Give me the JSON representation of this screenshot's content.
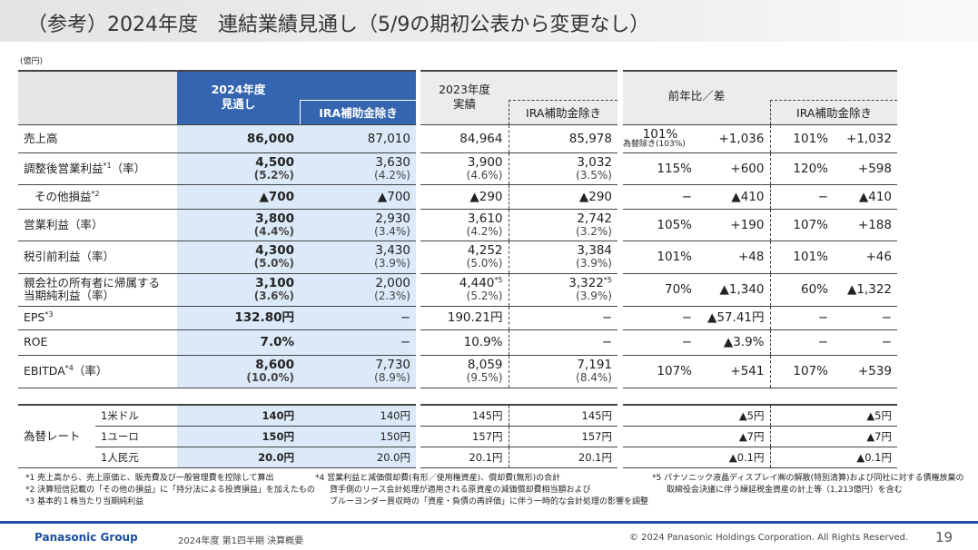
{
  "title": "（参考）2024年度　連結業績見通し（5/9の期初公表から変更なし）",
  "unit": "(億円)",
  "headers": {
    "fy2024": "2024年度\n見通し",
    "fy2023": "2023年度\n実績",
    "compare": "前年比／差",
    "ira": "IRA補助金除き"
  },
  "rows": [
    {
      "label": "売上高",
      "sup": "",
      "v": [
        [
          "86,000",
          ""
        ],
        [
          "87,010",
          ""
        ],
        [
          "84,964",
          "",
          ""
        ],
        [
          "85,978",
          "",
          ""
        ]
      ],
      "cmp": [
        "101%",
        "+1,036",
        "101%",
        "+1,032"
      ],
      "cmp_note": "為替除き(103%)"
    },
    {
      "label": "調整後営業利益",
      "sup": "*1",
      "suffix": "（率）",
      "v": [
        [
          "4,500",
          "(5.2%)"
        ],
        [
          "3,630",
          "(4.2%)"
        ],
        [
          "3,900",
          "(4.6%)",
          ""
        ],
        [
          "3,032",
          "(3.5%)",
          ""
        ]
      ],
      "cmp": [
        "115%",
        "+600",
        "120%",
        "+598"
      ]
    },
    {
      "label": "その他損益",
      "sup": "*2",
      "indent": true,
      "v": [
        [
          "▲700",
          ""
        ],
        [
          "▲700",
          ""
        ],
        [
          "▲290",
          "",
          ""
        ],
        [
          "▲290",
          "",
          ""
        ]
      ],
      "cmp": [
        "−",
        "▲410",
        "−",
        "▲410"
      ]
    },
    {
      "label": "営業利益（率）",
      "sup": "",
      "v": [
        [
          "3,800",
          "(4.4%)"
        ],
        [
          "2,930",
          "(3.4%)"
        ],
        [
          "3,610",
          "(4.2%)",
          ""
        ],
        [
          "2,742",
          "(3.2%)",
          ""
        ]
      ],
      "cmp": [
        "105%",
        "+190",
        "107%",
        "+188"
      ]
    },
    {
      "label": "税引前利益（率）",
      "sup": "",
      "v": [
        [
          "4,300",
          "(5.0%)"
        ],
        [
          "3,430",
          "(3.9%)"
        ],
        [
          "4,252",
          "(5.0%)",
          ""
        ],
        [
          "3,384",
          "(3.9%)",
          ""
        ]
      ],
      "cmp": [
        "101%",
        "+48",
        "101%",
        "+46"
      ]
    },
    {
      "label": "親会社の所有者に帰属する\n当期純利益（率）",
      "sup": "",
      "v": [
        [
          "3,100",
          "(3.6%)"
        ],
        [
          "2,000",
          "(2.3%)"
        ],
        [
          "4,440",
          "(5.2%)",
          "*5"
        ],
        [
          "3,322",
          "(3.9%)",
          "*5"
        ]
      ],
      "cmp": [
        "70%",
        "▲1,340",
        "60%",
        "▲1,322"
      ]
    },
    {
      "label": "EPS",
      "sup": "*3",
      "v": [
        [
          "132.80円",
          ""
        ],
        [
          "−",
          ""
        ],
        [
          "190.21円",
          "",
          ""
        ],
        [
          "−",
          "",
          ""
        ]
      ],
      "cmp": [
        "−",
        "▲57.41円",
        "−",
        "−"
      ]
    },
    {
      "label": "ROE",
      "sup": "",
      "v": [
        [
          "7.0%",
          ""
        ],
        [
          "−",
          ""
        ],
        [
          "10.9%",
          "",
          ""
        ],
        [
          "−",
          "",
          ""
        ]
      ],
      "cmp": [
        "−",
        "▲3.9%",
        "−",
        "−"
      ]
    },
    {
      "label": "EBITDA",
      "sup": "*4",
      "suffix": "（率）",
      "v": [
        [
          "8,600",
          "(10.0%)"
        ],
        [
          "7,730",
          "(8.9%)"
        ],
        [
          "8,059",
          "(9.5%)",
          ""
        ],
        [
          "7,191",
          "(8.4%)",
          ""
        ]
      ],
      "cmp": [
        "107%",
        "+541",
        "107%",
        "+539"
      ]
    }
  ],
  "fx": {
    "label": "為替レート",
    "rows": [
      {
        "label": "1米ドル",
        "v": [
          "140円",
          "140円",
          "145円",
          "145円"
        ],
        "cmp": [
          "",
          "▲5円",
          "",
          "▲5円"
        ]
      },
      {
        "label": "1ユーロ",
        "v": [
          "150円",
          "150円",
          "157円",
          "157円"
        ],
        "cmp": [
          "",
          "▲7円",
          "",
          "▲7円"
        ]
      },
      {
        "label": "1人民元",
        "v": [
          "20.0円",
          "20.0円",
          "20.1円",
          "20.1円"
        ],
        "cmp": [
          "",
          "▲0.1円",
          "",
          "▲0.1円"
        ]
      }
    ]
  },
  "footnotes": {
    "n1": "*1  売上高から、売上原価と、販売費及び一般管理費を控除して算出",
    "n2": "*2  決算短信記載の「その他の損益」に「持分法による投資損益」を加えたもの",
    "n3": "*3  基本的１株当たり当期純利益",
    "n4a": "*4  営業利益と減価償却費(有形／使用権資産)、償却費(無形)の合計",
    "n4b": "貸手側のリース会計処理が適用される原資産の減価償却費相当額および",
    "n4c": "ブルーヨンダー買収時の「資産・負債の再評価」に伴う一時的な会計処理の影響を調整",
    "n5a": "*5  パナソニック液晶ディスプレイ㈱の解散(特別清算)および同社に対する債権放棄の",
    "n5b": "取締役会決議に伴う繰延税金資産の計上等（1,213億円）を含む"
  },
  "footer": {
    "logo": "Panasonic Group",
    "subtitle": "2024年度 第1四半期  決算概要",
    "copyright": "© 2024 Panasonic Holdings Corporation. All Rights Reserved.",
    "page": "19"
  },
  "colors": {
    "header_blue": "#3565b0",
    "light_blue": "#dce9f8",
    "footer_blue": "#1a4fa0"
  }
}
